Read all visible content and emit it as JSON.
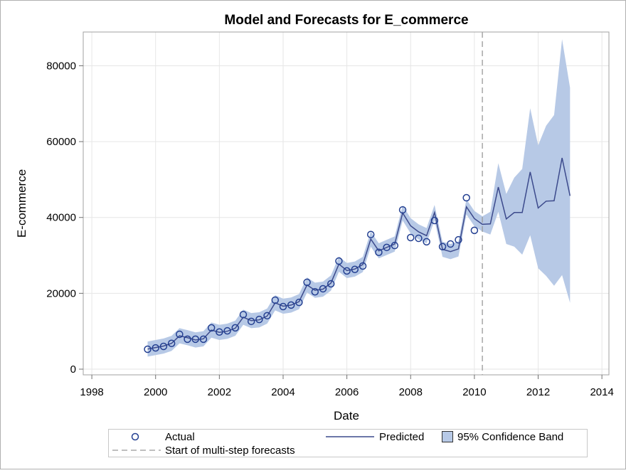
{
  "chart_data": {
    "type": "line",
    "title": "Model and Forecasts for E_commerce",
    "x_label": "Date",
    "y_label": "E-commerce",
    "x": [
      1999.75,
      2000,
      2000.25,
      2000.5,
      2000.75,
      2001,
      2001.25,
      2001.5,
      2001.75,
      2002,
      2002.25,
      2002.5,
      2002.75,
      2003,
      2003.25,
      2003.5,
      2003.75,
      2004,
      2004.25,
      2004.5,
      2004.75,
      2005,
      2005.25,
      2005.5,
      2005.75,
      2006,
      2006.25,
      2006.5,
      2006.75,
      2007,
      2007.25,
      2007.5,
      2007.75,
      2008,
      2008.25,
      2008.5,
      2008.75,
      2009,
      2009.25,
      2009.5,
      2009.75,
      2010,
      2010.25,
      2010.5,
      2010.75,
      2011,
      2011.25,
      2011.5,
      2011.75,
      2012,
      2012.25,
      2012.5,
      2012.75,
      2013
    ],
    "series": [
      {
        "name": "Actual",
        "color": "#233f91",
        "marker": "circle",
        "values": [
          5250,
          5600,
          6000,
          6800,
          9200,
          7900,
          7900,
          7900,
          10900,
          9800,
          10100,
          10900,
          14400,
          12600,
          13100,
          14100,
          18200,
          16500,
          16900,
          17600,
          22900,
          20400,
          21200,
          22500,
          28500,
          25900,
          26300,
          27200,
          35500,
          30800,
          32100,
          32600,
          42000,
          34700,
          34500,
          33600,
          39200,
          32300,
          33000,
          34100,
          45200,
          36600,
          null,
          null,
          null,
          null,
          null,
          null,
          null,
          null,
          null,
          null,
          null,
          null
        ]
      },
      {
        "name": "Predicted",
        "color": "#3c4a8c",
        "values": [
          5300,
          5700,
          6100,
          6800,
          8800,
          8300,
          7700,
          8000,
          10300,
          9700,
          10000,
          10800,
          13700,
          12800,
          13000,
          14000,
          17500,
          16600,
          16900,
          17800,
          22200,
          20800,
          21100,
          22700,
          27700,
          26000,
          26400,
          27600,
          34300,
          31200,
          32100,
          33000,
          41200,
          37800,
          36200,
          35200,
          41300,
          31600,
          31000,
          31700,
          42800,
          39700,
          38200,
          38300,
          48000,
          39600,
          41300,
          41300,
          52000,
          42500,
          44300,
          44400,
          55700,
          45700
        ]
      },
      {
        "name": "95% Confidence Band",
        "color": "#b7c9e6",
        "lower": [
          3300,
          3700,
          4100,
          4800,
          6800,
          6300,
          5700,
          6000,
          8300,
          7700,
          8000,
          8800,
          11700,
          10800,
          11000,
          12000,
          15500,
          14600,
          14900,
          15800,
          20200,
          18800,
          19100,
          20700,
          25700,
          24000,
          24400,
          25600,
          32300,
          29200,
          30100,
          31000,
          39200,
          35800,
          34200,
          33200,
          39300,
          29600,
          29000,
          29700,
          40800,
          37700,
          36300,
          35500,
          41500,
          33000,
          32300,
          30200,
          35300,
          26600,
          24600,
          22000,
          24800,
          17500
        ],
        "upper": [
          7300,
          7700,
          8100,
          8800,
          10800,
          10300,
          9700,
          10000,
          12300,
          11700,
          12000,
          12800,
          15700,
          14800,
          15000,
          16000,
          19500,
          18600,
          18900,
          19800,
          24200,
          22800,
          23100,
          24700,
          29700,
          28000,
          28400,
          29600,
          36300,
          33200,
          34100,
          35000,
          43200,
          39800,
          38200,
          37200,
          43300,
          33600,
          33000,
          33700,
          44800,
          41700,
          40300,
          41500,
          54300,
          46200,
          50500,
          52800,
          68800,
          59000,
          64200,
          67000,
          87000,
          74200
        ]
      }
    ],
    "reference_line": {
      "x": 2010.25,
      "label": "Start of multi-step forecasts",
      "color": "#999999"
    },
    "xlim": [
      1997.73,
      2014.22
    ],
    "xticks": [
      1998,
      2000,
      2002,
      2004,
      2006,
      2008,
      2010,
      2012,
      2014
    ],
    "ylim": [
      -1500,
      88900
    ],
    "yticks": [
      0,
      20000,
      40000,
      60000,
      80000
    ],
    "grid": true,
    "legend": "bottom"
  }
}
